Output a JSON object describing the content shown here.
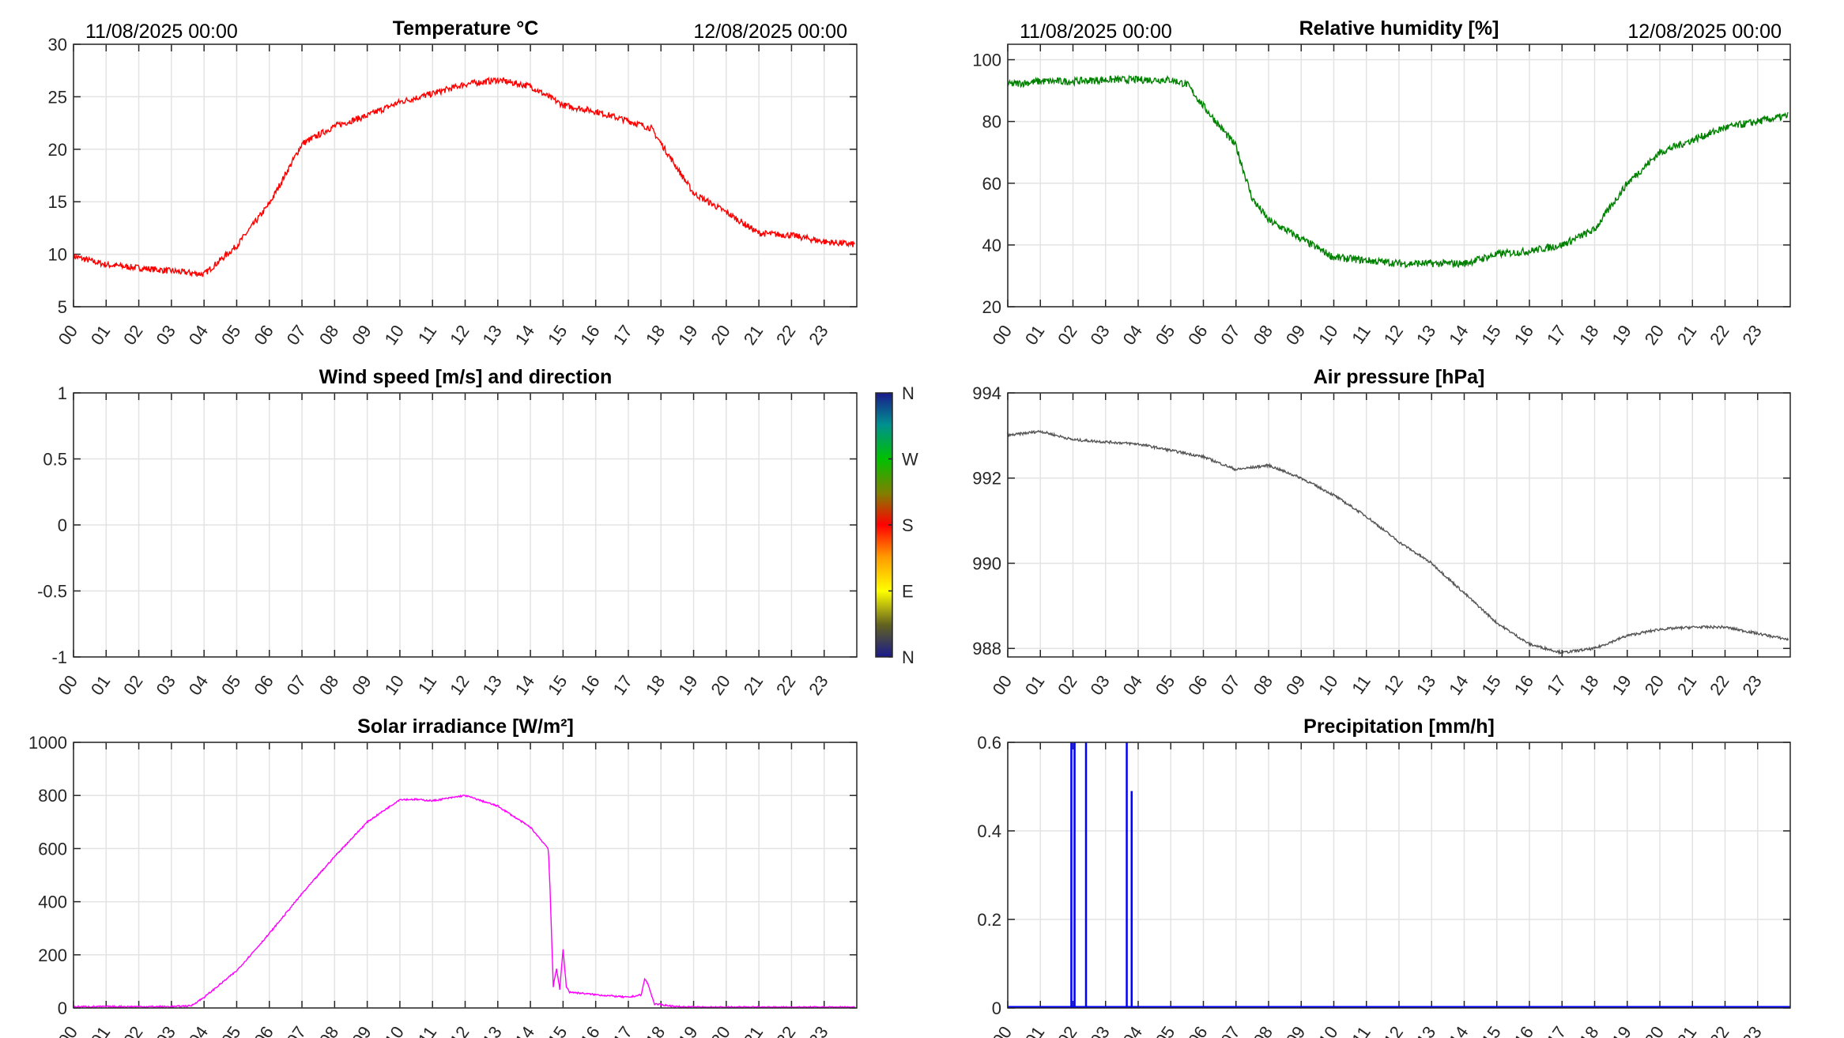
{
  "header": {
    "start_label": "11/08/2025 00:00",
    "end_label": "12/08/2025 00:00"
  },
  "x_ticks": [
    "00",
    "01",
    "02",
    "03",
    "04",
    "05",
    "06",
    "07",
    "08",
    "09",
    "10",
    "11",
    "12",
    "13",
    "14",
    "15",
    "16",
    "17",
    "18",
    "19",
    "20",
    "21",
    "22",
    "23"
  ],
  "colors": {
    "temperature": "#ff0000",
    "humidity": "#008000",
    "pressure": "#555555",
    "solar": "#ff00ff",
    "precip": "#0000ff"
  },
  "chart_data": [
    {
      "id": "temperature",
      "type": "line",
      "title": "Temperature °C",
      "ylim": [
        5,
        30
      ],
      "yticks": [
        "5",
        "10",
        "15",
        "20",
        "25",
        "30"
      ],
      "ytick_values": [
        5,
        10,
        15,
        20,
        25,
        30
      ],
      "noise": 0.3,
      "x": [
        0,
        1,
        2,
        3,
        4,
        5,
        6,
        7,
        8,
        9,
        10,
        11,
        12,
        13,
        14,
        15,
        16,
        17,
        17.7,
        19,
        20,
        21,
        22,
        23,
        24
      ],
      "y": [
        9.8,
        9.0,
        8.7,
        8.4,
        8.1,
        10.8,
        14.8,
        20.5,
        22.2,
        23.2,
        24.5,
        25.3,
        26.2,
        26.6,
        26.0,
        24.2,
        23.6,
        22.7,
        22.0,
        15.8,
        14.0,
        12.0,
        11.8,
        11.2,
        10.9
      ]
    },
    {
      "id": "humidity",
      "type": "line",
      "title": "Relative humidity [%]",
      "ylim": [
        20,
        105
      ],
      "yticks": [
        "20",
        "40",
        "60",
        "80",
        "100"
      ],
      "ytick_values": [
        20,
        40,
        60,
        80,
        100
      ],
      "noise": 1.2,
      "x": [
        0,
        1,
        2,
        3,
        4,
        5,
        5.5,
        6,
        7,
        7.5,
        8,
        9,
        10,
        11,
        12,
        13,
        14,
        15,
        16,
        17,
        18,
        19,
        20,
        21,
        22,
        23,
        24
      ],
      "y": [
        92,
        93,
        93,
        93.5,
        93.5,
        93.5,
        92,
        85,
        72,
        55,
        48,
        42,
        36,
        35,
        34,
        34,
        34,
        37,
        38,
        40,
        45,
        60,
        70,
        74,
        78,
        80,
        82
      ]
    },
    {
      "id": "wind",
      "type": "line",
      "title": "Wind speed [m/s] and direction",
      "ylim": [
        -1,
        1
      ],
      "yticks": [
        "-1",
        "-0.5",
        "0",
        "0.5",
        "1"
      ],
      "ytick_values": [
        -1,
        -0.5,
        0,
        0.5,
        1
      ],
      "x": [],
      "y": [],
      "colorbar": {
        "labels": [
          "N",
          "W",
          "S",
          "E",
          "N"
        ]
      }
    },
    {
      "id": "pressure",
      "type": "line",
      "title": "Air pressure [hPa]",
      "ylim": [
        987.8,
        994
      ],
      "yticks": [
        "988",
        "990",
        "992",
        "994"
      ],
      "ytick_values": [
        988,
        990,
        992,
        994
      ],
      "noise": 0.03,
      "x": [
        0,
        1,
        2,
        3,
        4,
        5,
        6,
        7,
        8,
        9,
        10,
        11,
        12,
        13,
        14,
        15,
        16,
        17,
        18,
        19,
        20,
        21,
        22,
        23,
        24
      ],
      "y": [
        993.0,
        993.1,
        992.9,
        992.85,
        992.8,
        992.65,
        992.5,
        992.2,
        992.3,
        992.0,
        991.6,
        991.1,
        990.5,
        990.0,
        989.3,
        988.6,
        988.1,
        987.9,
        988.0,
        988.3,
        988.45,
        988.5,
        988.5,
        988.35,
        988.2
      ]
    },
    {
      "id": "solar",
      "type": "line",
      "title": "Solar irradiance [W/m²]",
      "ylim": [
        0,
        1000
      ],
      "yticks": [
        "0",
        "200",
        "400",
        "600",
        "800",
        "1000"
      ],
      "ytick_values": [
        0,
        200,
        400,
        600,
        800,
        1000
      ],
      "noise": 3,
      "x": [
        0,
        3,
        3.6,
        4,
        5,
        6,
        7,
        8,
        9,
        10,
        10.5,
        11,
        12,
        13,
        14,
        14.55,
        14.6,
        14.7,
        14.8,
        14.9,
        15.0,
        15.1,
        15.2,
        16,
        17,
        17.4,
        17.5,
        17.6,
        17.8,
        18.5,
        19,
        24
      ],
      "y": [
        5,
        5,
        8,
        40,
        140,
        280,
        430,
        570,
        700,
        785,
        785,
        780,
        800,
        760,
        680,
        600,
        450,
        80,
        150,
        70,
        220,
        80,
        60,
        50,
        40,
        50,
        110,
        90,
        15,
        5,
        3,
        3
      ]
    },
    {
      "id": "precip",
      "type": "bar",
      "title": "Precipitation [mm/h]",
      "ylim": [
        0,
        0.6
      ],
      "yticks": [
        "0",
        "0.2",
        "0.4",
        "0.6"
      ],
      "ytick_values": [
        0,
        0.2,
        0.4,
        0.6
      ],
      "x": [
        1.95,
        2.05,
        2.4,
        3.65,
        3.8
      ],
      "y": [
        0.6,
        0.6,
        0.6,
        0.6,
        0.49
      ]
    }
  ]
}
